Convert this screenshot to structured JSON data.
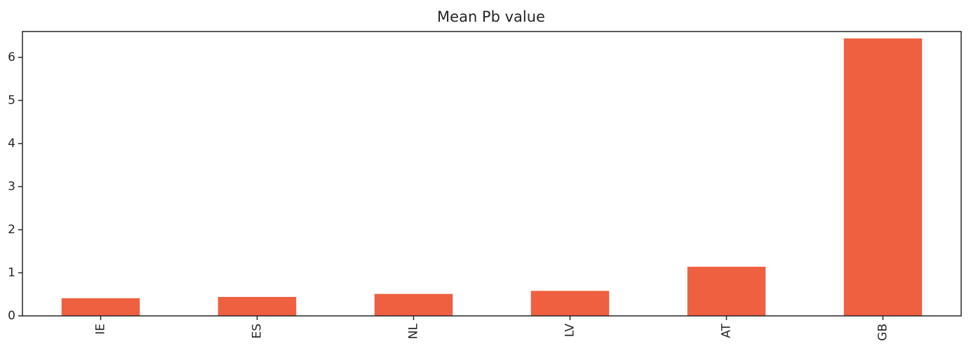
{
  "chart_data": {
    "type": "bar",
    "title": "Mean Pb value",
    "xlabel": "",
    "ylabel": "",
    "categories": [
      "IE",
      "ES",
      "NL",
      "LV",
      "AT",
      "GB"
    ],
    "values": [
      0.41,
      0.44,
      0.51,
      0.58,
      1.14,
      6.44
    ],
    "ylim": [
      0,
      6.6
    ],
    "yticks": [
      0,
      1,
      2,
      3,
      4,
      5,
      6
    ],
    "grid": false,
    "legend": false,
    "bar_color": "#ef6040",
    "axis_color": "#262626"
  }
}
